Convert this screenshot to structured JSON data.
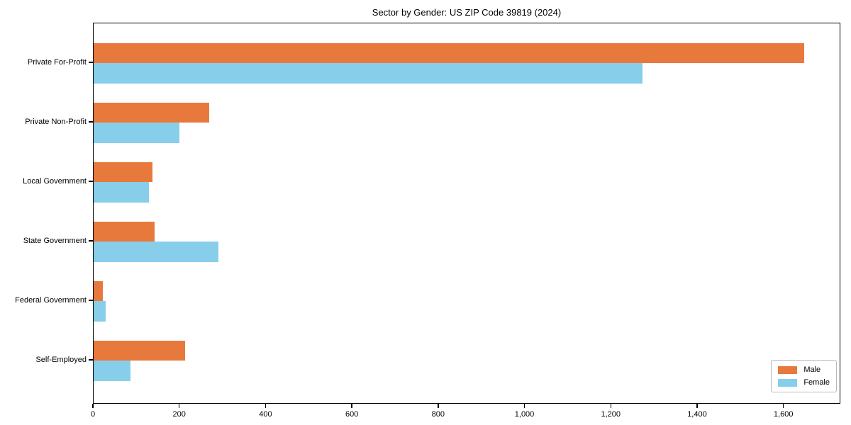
{
  "chart_data": {
    "type": "bar",
    "orientation": "horizontal",
    "grouped": true,
    "title": "Sector by Gender: US ZIP Code 39819 (2024)",
    "categories": [
      "Private For-Profit",
      "Private Non-Profit",
      "Local Government",
      "State Government",
      "Federal Government",
      "Self-Employed"
    ],
    "series": [
      {
        "name": "Male",
        "color": "#E8793D",
        "values": [
          1650,
          268,
          136,
          141,
          21,
          212
        ]
      },
      {
        "name": "Female",
        "color": "#87CEEB",
        "values": [
          1275,
          200,
          128,
          290,
          28,
          86
        ]
      }
    ],
    "xlabel": "",
    "ylabel": "",
    "xlim": [
      0,
      1732
    ],
    "xticks": [
      0,
      200,
      400,
      600,
      800,
      1000,
      1200,
      1400,
      1600
    ],
    "xtick_labels": [
      "0",
      "200",
      "400",
      "600",
      "800",
      "1,000",
      "1,200",
      "1,400",
      "1,600"
    ],
    "grid": false,
    "legend_position": "lower right",
    "background_color": "#ffffff",
    "spine_color": "#000000"
  }
}
